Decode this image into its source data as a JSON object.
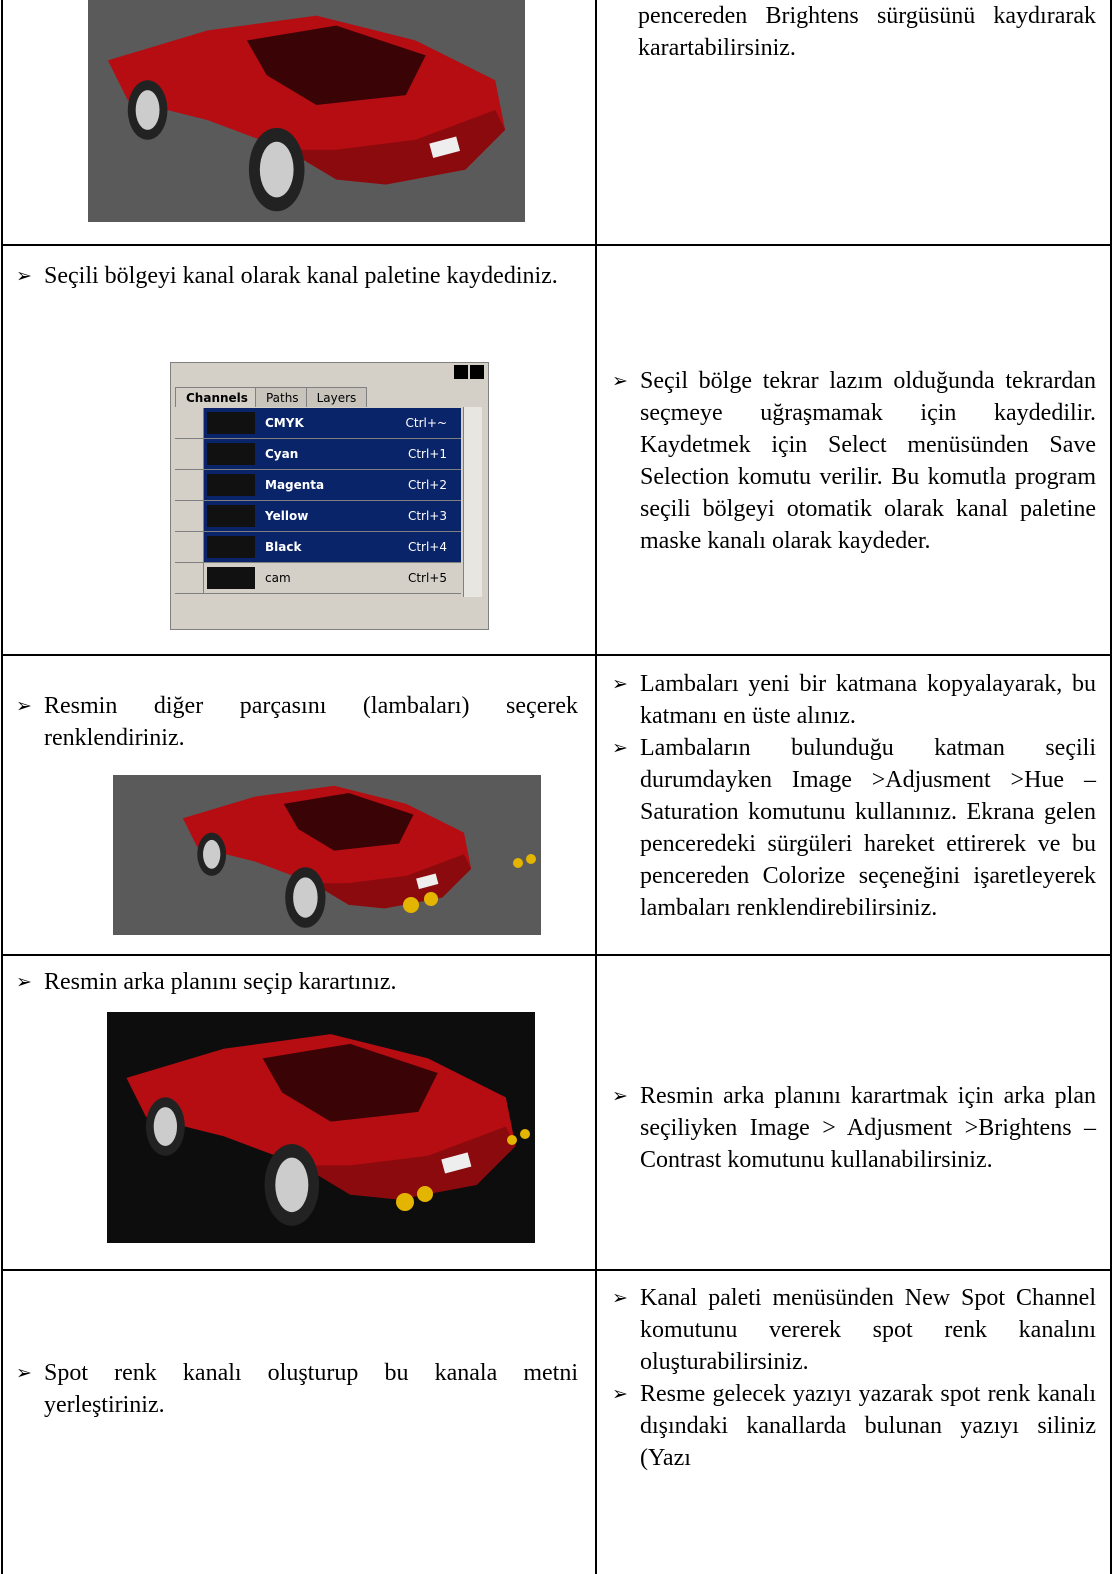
{
  "rows": [
    {
      "right": [
        "pencereden Brightens sürgüsünü kaydırarak karartabilirsiniz."
      ]
    },
    {
      "left": [
        "Seçili bölgeyi kanal olarak kanal paletine kaydediniz."
      ],
      "palette": {
        "tabs": [
          "Channels",
          "Paths",
          "Layers"
        ],
        "channels": [
          {
            "name": "CMYK",
            "shortcut": "Ctrl+~"
          },
          {
            "name": "Cyan",
            "shortcut": "Ctrl+1"
          },
          {
            "name": "Magenta",
            "shortcut": "Ctrl+2"
          },
          {
            "name": "Yellow",
            "shortcut": "Ctrl+3"
          },
          {
            "name": "Black",
            "shortcut": "Ctrl+4"
          },
          {
            "name": "cam",
            "shortcut": "Ctrl+5"
          }
        ]
      },
      "right": [
        "Seçil bölge tekrar lazım olduğunda tekrardan seçmeye uğraşmamak için kaydedilir. Kaydetmek için Select menüsünden Save Selection komutu verilir. Bu komutla program seçili bölgeyi otomatik olarak kanal paletine maske kanalı olarak kaydeder."
      ]
    },
    {
      "left": [
        "Resmin diğer parçasını (lambaları) seçerek renklendiriniz."
      ],
      "right": [
        "Lambaları yeni bir katmana kopyalayarak, bu katmanı en üste alınız.",
        "Lambaların bulunduğu katman seçili durumdayken Image >Adjusment >Hue – Saturation komutunu kullanınız. Ekrana gelen penceredeki sürgüleri hareket ettirerek ve bu pencereden Colorize seçeneğini işaretleyerek lambaları renklendirebilirsiniz."
      ]
    },
    {
      "left": [
        "Resmin arka planını seçip karartınız."
      ],
      "right": [
        "Resmin arka planını karartmak için arka plan seçiliyken Image > Adjusment >Brightens – Contrast komutunu kullanabilirsiniz."
      ]
    },
    {
      "left": [
        "Spot renk kanalı oluşturup bu kanala metni yerleştiriniz."
      ],
      "right": [
        "Kanal paleti menüsünden New Spot Channel komutunu vererek spot renk kanalını oluşturabilirsiniz.",
        "Resme gelecek yazıyı yazarak spot renk kanalı dışındaki kanallarda bulunan yazıyı siliniz (Yazı"
      ]
    }
  ]
}
